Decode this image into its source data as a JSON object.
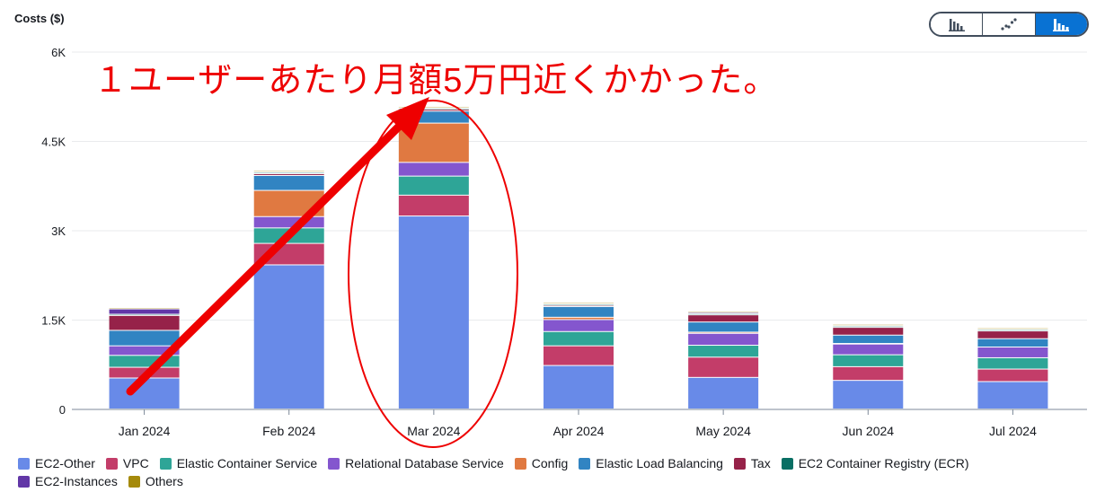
{
  "header": {
    "y_axis_title": "Costs ($)"
  },
  "view_toggle": {
    "options": [
      {
        "name": "bar-chart-icon",
        "active": false
      },
      {
        "name": "line-chart-icon",
        "active": false
      },
      {
        "name": "stacked-bar-chart-icon",
        "active": true
      }
    ],
    "active_color": "#0972d3"
  },
  "annotation": {
    "text": "１ユーザーあたり月額5万円近くかかった。",
    "color": "#ee0000"
  },
  "chart_data": {
    "type": "bar",
    "stacked": true,
    "categories": [
      "Jan 2024",
      "Feb 2024",
      "Mar 2024",
      "Apr 2024",
      "May 2024",
      "Jun 2024",
      "Jul 2024"
    ],
    "ylim": [
      0,
      6000
    ],
    "yticks": [
      0,
      1500,
      3000,
      4500,
      6000
    ],
    "ytick_labels": [
      "0",
      "1.5K",
      "3K",
      "4.5K",
      "6K"
    ],
    "grid": true,
    "legend_position": "bottom",
    "series": [
      {
        "name": "EC2-Other",
        "color": "#688ae8",
        "values": [
          520,
          2420,
          3240,
          730,
          530,
          480,
          460
        ]
      },
      {
        "name": "VPC",
        "color": "#c33d69",
        "values": [
          180,
          360,
          350,
          330,
          340,
          230,
          210
        ]
      },
      {
        "name": "Elastic Container Service",
        "color": "#2ea597",
        "values": [
          200,
          260,
          320,
          240,
          200,
          200,
          190
        ]
      },
      {
        "name": "Relational Database Service",
        "color": "#8456ce",
        "values": [
          160,
          190,
          230,
          200,
          200,
          180,
          180
        ]
      },
      {
        "name": "Config",
        "color": "#e07941",
        "values": [
          0,
          440,
          660,
          40,
          20,
          10,
          0
        ]
      },
      {
        "name": "Elastic Load Balancing",
        "color": "#3184c2",
        "values": [
          260,
          250,
          200,
          180,
          170,
          140,
          140
        ]
      },
      {
        "name": "Tax",
        "color": "#962249",
        "values": [
          250,
          30,
          30,
          20,
          120,
          130,
          130
        ]
      },
      {
        "name": "EC2 Container Registry (ECR)",
        "color": "#096f64",
        "values": [
          20,
          20,
          20,
          20,
          20,
          20,
          20
        ]
      },
      {
        "name": "EC2-Instances",
        "color": "#6237a7",
        "values": [
          90,
          10,
          10,
          10,
          20,
          10,
          10
        ]
      },
      {
        "name": "Others",
        "color": "#a58a0b",
        "values": [
          20,
          20,
          20,
          20,
          20,
          20,
          20
        ]
      }
    ]
  }
}
